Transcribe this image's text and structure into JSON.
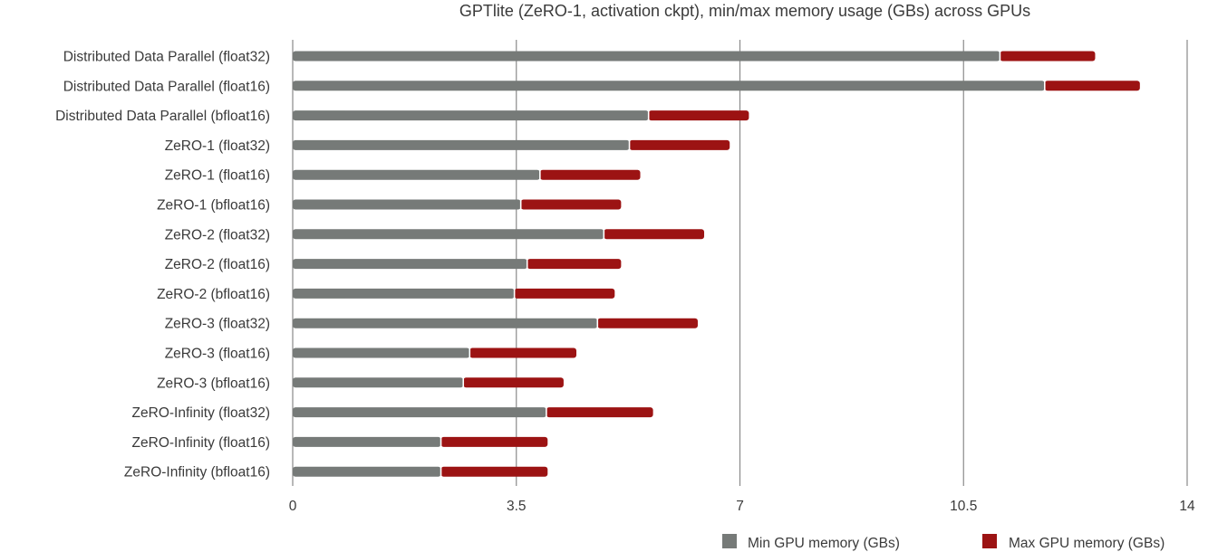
{
  "chart_data": {
    "type": "bar",
    "orientation": "horizontal",
    "stacked": true,
    "title": "GPTlite (ZeRO-1, activation ckpt), min/max memory usage (GBs) across GPUs",
    "xlim": [
      0,
      14
    ],
    "xticks": [
      "0",
      "3.5",
      "7",
      "10.5",
      "14"
    ],
    "grid": true,
    "legend_position": "bottom-right",
    "categories": [
      "Distributed Data Parallel (float32)",
      "Distributed Data Parallel (float16)",
      "Distributed Data Parallel (bfloat16)",
      "ZeRO-1 (float32)",
      "ZeRO-1 (float16)",
      "ZeRO-1 (bfloat16)",
      "ZeRO-2 (float32)",
      "ZeRO-2 (float16)",
      "ZeRO-2 (bfloat16)",
      "ZeRO-3 (float32)",
      "ZeRO-3 (float16)",
      "ZeRO-3 (bfloat16)",
      "ZeRO-Infinity (float32)",
      "ZeRO-Infinity (float16)",
      "ZeRO-Infinity (bfloat16)"
    ],
    "series": [
      {
        "name": "Min GPU memory (GBs)",
        "color": "#767a78",
        "values": [
          11.07,
          11.77,
          5.57,
          5.27,
          3.87,
          3.57,
          4.87,
          3.67,
          3.47,
          4.77,
          2.77,
          2.67,
          3.97,
          2.32,
          2.32
        ]
      },
      {
        "name": "Max GPU memory (GBs)",
        "color": "#9c1313",
        "values": [
          1.49,
          1.49,
          1.57,
          1.57,
          1.57,
          1.57,
          1.57,
          1.47,
          1.57,
          1.57,
          1.67,
          1.57,
          1.67,
          1.67,
          1.67
        ]
      }
    ]
  }
}
